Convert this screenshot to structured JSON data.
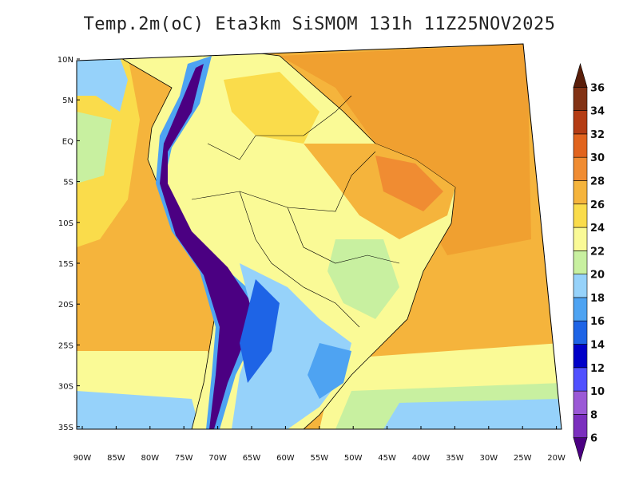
{
  "title": "Temp.2m(oC) Eta3km SiSMOM 131h 11Z25NOV2025",
  "lat_labels": [
    "10N",
    "5N",
    "EQ",
    "5S",
    "10S",
    "15S",
    "20S",
    "25S",
    "30S",
    "35S"
  ],
  "lon_labels": [
    "90W",
    "85W",
    "80W",
    "75W",
    "70W",
    "65W",
    "60W",
    "55W",
    "50W",
    "45W",
    "40W",
    "35W",
    "30W",
    "25W",
    "20W"
  ],
  "colorbar": {
    "labels": [
      "6",
      "8",
      "10",
      "12",
      "14",
      "16",
      "18",
      "20",
      "22",
      "24",
      "26",
      "28",
      "30",
      "32",
      "34",
      "36"
    ],
    "colors": [
      "#4b0082",
      "#7b2fbe",
      "#9b59d6",
      "#5050ff",
      "#0000c8",
      "#1e64e6",
      "#4ea3f2",
      "#96d2fa",
      "#c8f0a0",
      "#fafa96",
      "#fadc4b",
      "#f5b43c",
      "#f08c32",
      "#e1641e",
      "#b43c14",
      "#823214",
      "#5a1e0a"
    ]
  },
  "ocean_color": "#f5b43c",
  "land_color": "#fafa96"
}
